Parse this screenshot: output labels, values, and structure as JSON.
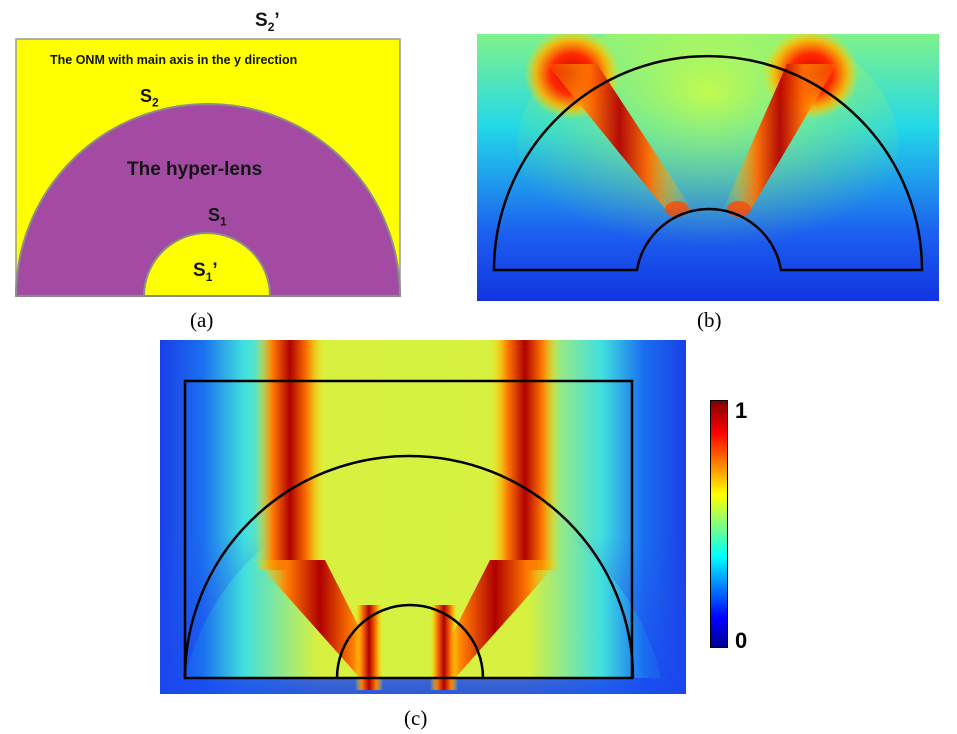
{
  "panel_a": {
    "s2_prime_label": "S2'",
    "onm_label": "The ONM with main axis in the y direction",
    "s2_label": "S2",
    "hyperlens_label": "The hyper-lens",
    "s1_label": "S1",
    "s1_prime_label": "S1'",
    "colors": {
      "onm": "#ffff00",
      "lens": "#a34ba3",
      "boundary": "#8c8c8c"
    },
    "caption": "(a)"
  },
  "panel_b": {
    "caption": "(b)"
  },
  "panel_c": {
    "caption": "(c)"
  },
  "colorbar": {
    "max_label": "1",
    "min_label": "0",
    "colormap": "jet"
  }
}
